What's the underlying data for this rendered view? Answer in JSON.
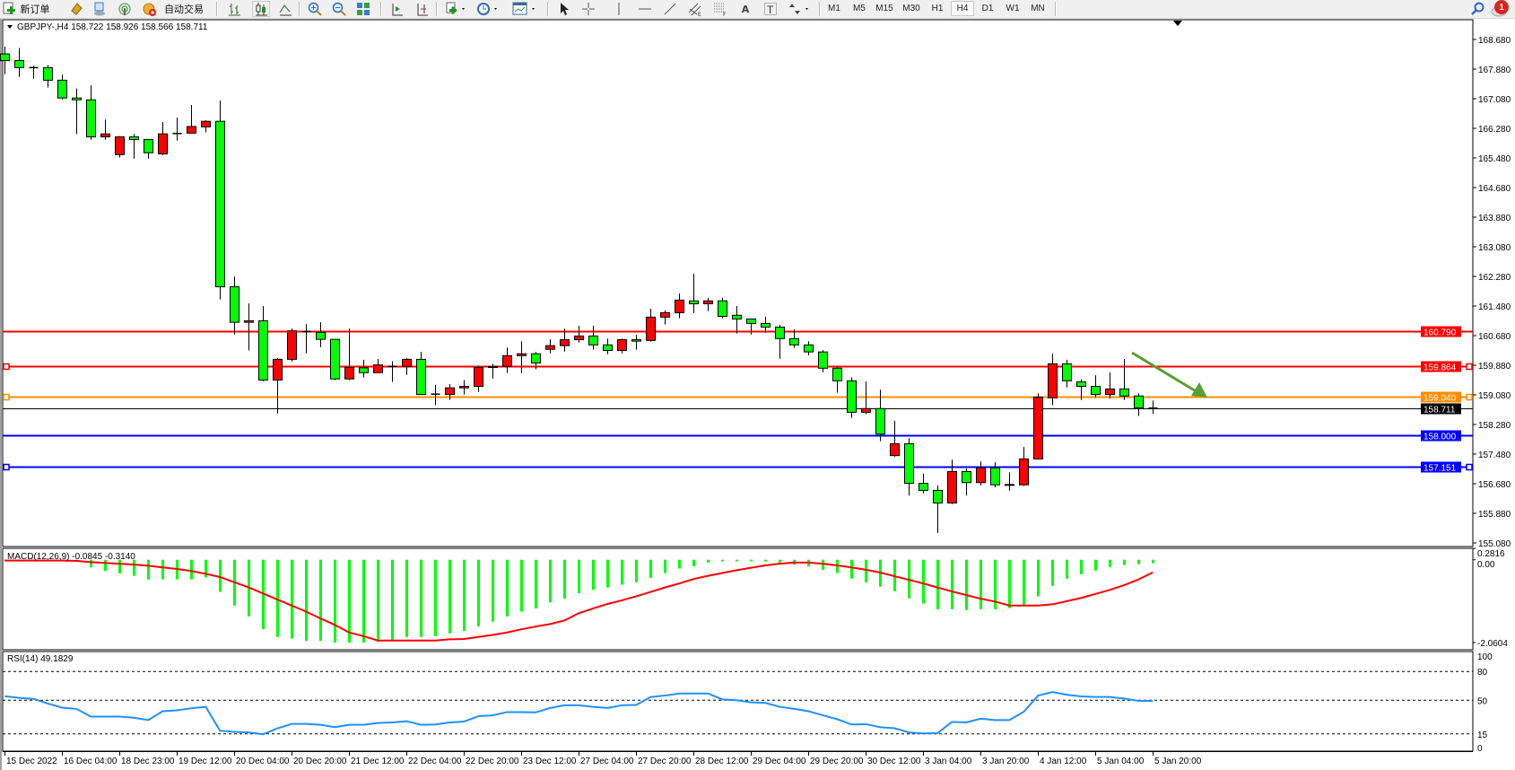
{
  "toolbar": {
    "new_order_label": "新订单",
    "auto_trading_label": "自动交易",
    "text_tool_label": "A",
    "text_label_tool": "T",
    "timeframes": [
      "M1",
      "M5",
      "M15",
      "M30",
      "H1",
      "H4",
      "D1",
      "W1",
      "MN"
    ],
    "active_timeframe": "H4",
    "notification_count": "1",
    "icons": [
      "new-order-icon",
      "toolbox-icon",
      "market-watch-icon",
      "signals-icon",
      "auto-trading-icon",
      "bar-chart-icon",
      "candlestick-icon",
      "line-chart-icon",
      "zoom-in-icon",
      "zoom-out-icon",
      "tile-windows-icon",
      "auto-scroll-icon",
      "chart-shift-icon",
      "indicators-icon",
      "period-icon",
      "templates-icon",
      "cursor-icon",
      "crosshair-icon",
      "vertical-line-icon",
      "horizontal-line-icon",
      "trendline-icon",
      "equidistant-channel-icon",
      "fibonacci-icon",
      "text-icon",
      "text-label-icon",
      "arrows-icon",
      "search-icon",
      "notification-icon"
    ]
  },
  "chart": {
    "header": "GBPJPY-,H4  158.722 158.926 158.566 158.711",
    "macd_title": "MACD(12,26,9) -0.0845 -0.3140",
    "rsi_title": "RSI(14) 49.1829"
  },
  "chart_data": [
    {
      "type": "candlestick",
      "symbol": "GBPJPY-",
      "timeframe": "H4",
      "up_color": "#ff0000",
      "down_color": "#00ff00",
      "ylim": [
        155.08,
        168.68
      ],
      "y_ticks": [
        "168.680",
        "167.880",
        "167.080",
        "166.280",
        "165.480",
        "164.680",
        "163.880",
        "163.080",
        "162.280",
        "161.480",
        "160.680",
        "159.880",
        "159.080",
        "158.280",
        "157.480",
        "156.680",
        "155.880",
        "155.080"
      ],
      "x_labels": [
        "15 Dec 2022",
        "16 Dec 04:00",
        "18 Dec 23:00",
        "19 Dec 12:00",
        "20 Dec 04:00",
        "20 Dec 20:00",
        "21 Dec 12:00",
        "22 Dec 04:00",
        "22 Dec 20:00",
        "23 Dec 12:00",
        "27 Dec 04:00",
        "27 Dec 20:00",
        "28 Dec 12:00",
        "29 Dec 04:00",
        "29 Dec 20:00",
        "30 Dec 12:00",
        "3 Jan 04:00",
        "3 Jan 20:00",
        "4 Jan 12:00",
        "5 Jan 04:00",
        "5 Jan 20:00"
      ],
      "levels": [
        {
          "price": "160.790",
          "color": "#ff0000"
        },
        {
          "price": "159.864",
          "color": "#ff0000"
        },
        {
          "price": "159.040",
          "color": "#ff8c00"
        },
        {
          "price": "158.711",
          "color": "#000000"
        },
        {
          "price": "158.000",
          "color": "#0000ff"
        },
        {
          "price": "157.151",
          "color": "#0000ff"
        }
      ],
      "arrow_color": "#5a9e32",
      "candles": [
        [
          168.29,
          168.49,
          167.74,
          168.11
        ],
        [
          168.11,
          168.45,
          167.67,
          167.92
        ],
        [
          167.92,
          167.97,
          167.62,
          167.92
        ],
        [
          167.92,
          167.99,
          167.38,
          167.58
        ],
        [
          167.58,
          167.73,
          167.06,
          167.1
        ],
        [
          167.1,
          167.36,
          166.13,
          167.05
        ],
        [
          167.05,
          167.44,
          165.97,
          166.05
        ],
        [
          166.05,
          166.52,
          165.97,
          166.13
        ],
        [
          165.57,
          166.07,
          165.49,
          166.05
        ],
        [
          166.05,
          166.13,
          165.46,
          165.98
        ],
        [
          165.98,
          165.98,
          165.46,
          165.62
        ],
        [
          165.59,
          166.45,
          165.56,
          166.13
        ],
        [
          166.14,
          166.57,
          165.95,
          166.14
        ],
        [
          166.15,
          166.91,
          166.15,
          166.33
        ],
        [
          166.32,
          166.5,
          166.17,
          166.47
        ],
        [
          166.47,
          167.03,
          161.66,
          162.0
        ],
        [
          162.0,
          162.28,
          160.71,
          161.04
        ],
        [
          161.04,
          161.55,
          160.28,
          161.08
        ],
        [
          161.08,
          161.48,
          159.45,
          159.48
        ],
        [
          159.48,
          160.07,
          158.58,
          160.04
        ],
        [
          160.04,
          160.87,
          159.98,
          160.81
        ],
        [
          160.79,
          160.99,
          160.2,
          160.78
        ],
        [
          160.77,
          161.04,
          160.37,
          160.58
        ],
        [
          160.58,
          160.58,
          159.48,
          159.51
        ],
        [
          159.51,
          160.87,
          159.48,
          159.82
        ],
        [
          159.81,
          160.03,
          159.55,
          159.68
        ],
        [
          159.68,
          160.05,
          159.68,
          159.89
        ],
        [
          159.85,
          159.99,
          159.43,
          159.85
        ],
        [
          159.85,
          160.07,
          159.62,
          160.04
        ],
        [
          160.04,
          160.24,
          159.09,
          159.09
        ],
        [
          159.1,
          159.35,
          158.8,
          159.1
        ],
        [
          159.09,
          159.37,
          158.94,
          159.27
        ],
        [
          159.27,
          159.48,
          159.09,
          159.31
        ],
        [
          159.31,
          159.87,
          159.16,
          159.82
        ],
        [
          159.82,
          159.92,
          159.52,
          159.85
        ],
        [
          159.85,
          160.36,
          159.67,
          160.14
        ],
        [
          160.14,
          160.53,
          159.67,
          160.19
        ],
        [
          160.19,
          160.24,
          159.77,
          159.94
        ],
        [
          160.31,
          160.58,
          160.2,
          160.41
        ],
        [
          160.41,
          160.87,
          160.25,
          160.57
        ],
        [
          160.57,
          160.95,
          160.49,
          160.67
        ],
        [
          160.67,
          160.95,
          160.3,
          160.43
        ],
        [
          160.43,
          160.6,
          160.18,
          160.28
        ],
        [
          160.28,
          160.6,
          160.2,
          160.57
        ],
        [
          160.57,
          160.7,
          160.3,
          160.53
        ],
        [
          160.55,
          161.41,
          160.52,
          161.18
        ],
        [
          161.18,
          161.36,
          160.98,
          161.3
        ],
        [
          161.3,
          161.82,
          161.15,
          161.64
        ],
        [
          161.62,
          162.35,
          161.29,
          161.54
        ],
        [
          161.54,
          161.7,
          161.34,
          161.62
        ],
        [
          161.62,
          161.7,
          161.15,
          161.2
        ],
        [
          161.23,
          161.48,
          160.74,
          161.13
        ],
        [
          161.13,
          161.13,
          160.71,
          161.01
        ],
        [
          161.01,
          161.19,
          160.76,
          160.91
        ],
        [
          160.91,
          160.97,
          160.06,
          160.6
        ],
        [
          160.6,
          160.85,
          160.35,
          160.43
        ],
        [
          160.43,
          160.53,
          160.15,
          160.24
        ],
        [
          160.24,
          160.29,
          159.69,
          159.8
        ],
        [
          159.8,
          159.86,
          159.14,
          159.46
        ],
        [
          159.46,
          159.56,
          158.46,
          158.61
        ],
        [
          158.61,
          159.44,
          158.56,
          158.71
        ],
        [
          158.71,
          159.22,
          157.83,
          158.02
        ],
        [
          157.44,
          158.38,
          157.41,
          157.76
        ],
        [
          157.76,
          157.91,
          156.36,
          156.69
        ],
        [
          156.69,
          156.95,
          156.42,
          156.5
        ],
        [
          156.5,
          156.63,
          155.35,
          156.16
        ],
        [
          156.16,
          157.33,
          156.13,
          157.01
        ],
        [
          157.01,
          157.09,
          156.36,
          156.71
        ],
        [
          156.71,
          157.28,
          156.63,
          157.11
        ],
        [
          157.11,
          157.26,
          156.58,
          156.65
        ],
        [
          156.66,
          156.99,
          156.49,
          156.64
        ],
        [
          156.65,
          157.67,
          156.62,
          157.35
        ],
        [
          157.35,
          159.12,
          157.34,
          159.02
        ],
        [
          159.0,
          160.19,
          158.8,
          159.92
        ],
        [
          159.92,
          160.03,
          159.28,
          159.46
        ],
        [
          159.43,
          159.5,
          158.94,
          159.31
        ],
        [
          159.31,
          159.61,
          159.0,
          159.09
        ],
        [
          159.09,
          159.69,
          158.98,
          159.24
        ],
        [
          159.24,
          160.05,
          158.94,
          159.05
        ],
        [
          159.05,
          159.12,
          158.51,
          158.73
        ],
        [
          158.722,
          158.926,
          158.566,
          158.711
        ]
      ]
    },
    {
      "type": "bar",
      "indicator": "MACD(12,26,9)",
      "y_ticks": [
        "0.2816",
        "0.00",
        "-2.0604"
      ],
      "ylim": [
        -2.0604,
        0.2816
      ],
      "histogram_color": "#00ff00",
      "signal_color": "#ff0000",
      "histogram": [
        -0.005,
        -0.01,
        -0.01,
        -0.01,
        -0.02,
        -0.04,
        -0.19,
        -0.28,
        -0.34,
        -0.4,
        -0.49,
        -0.49,
        -0.49,
        -0.49,
        -0.44,
        -0.8,
        -1.14,
        -1.41,
        -1.73,
        -1.92,
        -1.96,
        -2.02,
        -2.02,
        -2.06,
        -2.06,
        -2.06,
        -2.04,
        -2.02,
        -1.92,
        -1.92,
        -1.9,
        -1.83,
        -1.77,
        -1.66,
        -1.54,
        -1.41,
        -1.29,
        -1.21,
        -1.06,
        -0.97,
        -0.83,
        -0.75,
        -0.69,
        -0.62,
        -0.56,
        -0.45,
        -0.33,
        -0.22,
        -0.16,
        -0.07,
        -0.04,
        -0.04,
        -0.04,
        -0.04,
        -0.07,
        -0.12,
        -0.17,
        -0.25,
        -0.33,
        -0.47,
        -0.56,
        -0.67,
        -0.78,
        -0.96,
        -1.09,
        -1.23,
        -1.23,
        -1.25,
        -1.23,
        -1.23,
        -1.2,
        -1.12,
        -0.91,
        -0.65,
        -0.47,
        -0.36,
        -0.27,
        -0.18,
        -0.13,
        -0.11,
        -0.0845
      ],
      "signal": [
        -0.02,
        -0.02,
        -0.02,
        -0.02,
        -0.02,
        -0.03,
        -0.06,
        -0.08,
        -0.1,
        -0.12,
        -0.15,
        -0.19,
        -0.23,
        -0.28,
        -0.35,
        -0.43,
        -0.56,
        -0.69,
        -0.84,
        -0.99,
        -1.14,
        -1.29,
        -1.46,
        -1.62,
        -1.81,
        -1.9,
        -2.01,
        -2.01,
        -2.01,
        -2.01,
        -2.01,
        -1.98,
        -1.97,
        -1.92,
        -1.87,
        -1.81,
        -1.73,
        -1.66,
        -1.6,
        -1.51,
        -1.33,
        -1.21,
        -1.1,
        -1.01,
        -0.91,
        -0.8,
        -0.69,
        -0.59,
        -0.48,
        -0.4,
        -0.33,
        -0.26,
        -0.2,
        -0.14,
        -0.1,
        -0.07,
        -0.07,
        -0.1,
        -0.14,
        -0.19,
        -0.25,
        -0.32,
        -0.41,
        -0.5,
        -0.59,
        -0.69,
        -0.79,
        -0.88,
        -0.97,
        -1.04,
        -1.14,
        -1.14,
        -1.14,
        -1.11,
        -1.03,
        -0.95,
        -0.85,
        -0.75,
        -0.63,
        -0.49,
        -0.314
      ]
    },
    {
      "type": "line",
      "indicator": "RSI(14)",
      "ylim": [
        0,
        100
      ],
      "y_ticks": [
        "100",
        "80",
        "50",
        "15",
        "0"
      ],
      "levels": [
        80,
        50,
        15
      ],
      "line_color": "#1e90ff",
      "values": [
        54.3,
        52.5,
        51.5,
        46.6,
        42.3,
        41.0,
        33.0,
        33.0,
        33.0,
        31.8,
        29.4,
        38.6,
        39.5,
        41.7,
        43.2,
        18.3,
        17.1,
        16.5,
        14.6,
        20.8,
        25.4,
        25.4,
        24.5,
        22.0,
        24.5,
        24.5,
        26.3,
        26.9,
        28.2,
        24.5,
        24.8,
        26.9,
        27.8,
        33.4,
        34.3,
        37.7,
        37.7,
        37.4,
        42.0,
        44.8,
        44.8,
        43.2,
        42.0,
        44.8,
        45.1,
        53.4,
        54.9,
        57.1,
        57.1,
        57.1,
        50.9,
        50.0,
        47.8,
        47.2,
        43.2,
        41.1,
        38.6,
        34.3,
        30.3,
        24.8,
        25.1,
        22.0,
        20.8,
        16.5,
        15.5,
        15.8,
        27.5,
        26.9,
        30.9,
        29.4,
        29.4,
        38.0,
        54.9,
        58.6,
        55.8,
        54.0,
        53.4,
        53.4,
        51.8,
        49.4,
        49.1829
      ]
    }
  ]
}
